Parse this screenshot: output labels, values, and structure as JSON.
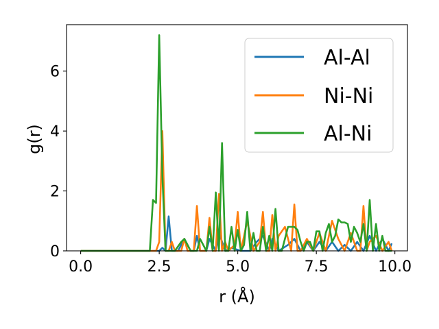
{
  "chart_data": {
    "type": "line",
    "xlabel": "r (Å)",
    "ylabel": "g(r)",
    "xlim": [
      -0.45,
      10.4
    ],
    "ylim": [
      0,
      7.55
    ],
    "xticks": [
      0.0,
      2.5,
      5.0,
      7.5,
      10.0
    ],
    "xtick_labels": [
      "0.0",
      "2.5",
      "5.0",
      "7.5",
      "10.0"
    ],
    "yticks": [
      0,
      2,
      4,
      6
    ],
    "ytick_labels": [
      "0",
      "2",
      "4",
      "6"
    ],
    "grid": false,
    "legend_position": "top-right",
    "series": [
      {
        "name": "Al-Al",
        "color": "#1f77b4",
        "x": [
          0.0,
          2.5,
          2.6,
          2.7,
          2.8,
          2.9,
          3.1,
          3.3,
          3.5,
          3.6,
          3.7,
          3.8,
          4.0,
          4.1,
          4.3,
          4.4,
          4.6,
          4.8,
          5.1,
          5.4,
          5.6,
          5.8,
          6.0,
          6.1,
          6.3,
          6.6,
          6.8,
          7.0,
          7.2,
          7.4,
          7.6,
          7.8,
          8.0,
          8.2,
          8.4,
          8.6,
          8.8,
          9.0,
          9.2,
          9.4,
          9.6,
          9.8,
          9.9
        ],
        "y": [
          0.0,
          0.0,
          0.1,
          0.0,
          1.15,
          0.0,
          0.0,
          0.4,
          0.0,
          0.0,
          0.5,
          0.0,
          0.0,
          0.4,
          0.0,
          0.6,
          0.0,
          0.1,
          0.0,
          0.0,
          0.3,
          0.5,
          0.0,
          0.4,
          0.0,
          0.2,
          0.4,
          0.0,
          0.3,
          0.0,
          0.3,
          0.0,
          0.3,
          0.0,
          0.2,
          0.0,
          0.3,
          0.0,
          0.5,
          0.0,
          0.4,
          0.0,
          0.25
        ]
      },
      {
        "name": "Ni-Ni",
        "color": "#ff7f0e",
        "x": [
          0.0,
          2.3,
          2.4,
          2.5,
          2.6,
          2.7,
          2.8,
          2.9,
          3.0,
          3.2,
          3.3,
          3.4,
          3.6,
          3.7,
          3.8,
          4.0,
          4.1,
          4.2,
          4.3,
          4.4,
          4.5,
          4.6,
          4.7,
          4.9,
          5.0,
          5.1,
          5.2,
          5.3,
          5.5,
          5.7,
          5.8,
          5.9,
          6.0,
          6.1,
          6.2,
          6.3,
          6.5,
          6.7,
          6.8,
          6.9,
          7.0,
          7.2,
          7.4,
          7.6,
          7.8,
          8.0,
          8.2,
          8.4,
          8.6,
          8.8,
          8.9,
          9.0,
          9.1,
          9.2,
          9.4,
          9.6,
          9.8,
          9.9
        ],
        "y": [
          0.0,
          0.0,
          0.0,
          0.3,
          4.0,
          0.0,
          0.0,
          0.3,
          0.0,
          0.0,
          0.4,
          0.0,
          0.0,
          1.5,
          0.0,
          0.0,
          1.1,
          0.0,
          0.0,
          1.9,
          0.0,
          0.3,
          0.0,
          0.2,
          1.3,
          0.0,
          0.5,
          1.0,
          0.0,
          0.3,
          1.3,
          0.0,
          0.0,
          1.2,
          0.0,
          0.5,
          0.8,
          0.0,
          1.55,
          0.0,
          0.0,
          0.4,
          0.0,
          0.6,
          0.0,
          1.0,
          0.4,
          0.0,
          0.6,
          0.0,
          0.0,
          1.5,
          0.0,
          0.3,
          0.5,
          0.0,
          0.3,
          0.0
        ]
      },
      {
        "name": "Al-Ni",
        "color": "#2ca02c",
        "x": [
          0.0,
          2.2,
          2.3,
          2.4,
          2.5,
          2.6,
          2.7,
          3.0,
          3.2,
          3.3,
          3.5,
          3.7,
          3.8,
          4.0,
          4.1,
          4.2,
          4.3,
          4.4,
          4.5,
          4.6,
          4.7,
          4.8,
          4.9,
          5.0,
          5.1,
          5.2,
          5.3,
          5.4,
          5.5,
          5.6,
          5.7,
          5.8,
          5.9,
          6.0,
          6.1,
          6.2,
          6.3,
          6.4,
          6.5,
          6.6,
          6.8,
          6.9,
          7.0,
          7.1,
          7.2,
          7.3,
          7.4,
          7.5,
          7.6,
          7.7,
          7.8,
          7.9,
          8.0,
          8.1,
          8.2,
          8.3,
          8.4,
          8.5,
          8.6,
          8.7,
          8.8,
          8.9,
          9.0,
          9.1,
          9.2,
          9.3,
          9.4,
          9.5,
          9.6,
          9.7,
          9.8,
          9.9
        ],
        "y": [
          0.0,
          0.0,
          1.7,
          1.6,
          7.2,
          2.5,
          0.0,
          0.0,
          0.3,
          0.4,
          0.0,
          0.0,
          0.4,
          0.0,
          0.8,
          0.0,
          1.95,
          0.0,
          3.6,
          0.0,
          0.0,
          0.8,
          0.0,
          0.7,
          0.0,
          0.2,
          1.3,
          0.0,
          0.6,
          0.0,
          0.0,
          0.8,
          0.0,
          0.5,
          0.0,
          1.4,
          0.0,
          0.0,
          0.4,
          0.8,
          0.8,
          0.7,
          0.3,
          0.0,
          0.3,
          0.3,
          0.0,
          0.65,
          0.65,
          0.0,
          0.6,
          0.9,
          0.3,
          0.5,
          1.05,
          0.95,
          0.95,
          0.9,
          0.3,
          0.8,
          0.6,
          0.3,
          0.9,
          0.0,
          1.7,
          0.0,
          0.9,
          0.0,
          0.5,
          0.0,
          0.0,
          0.0
        ]
      }
    ]
  }
}
